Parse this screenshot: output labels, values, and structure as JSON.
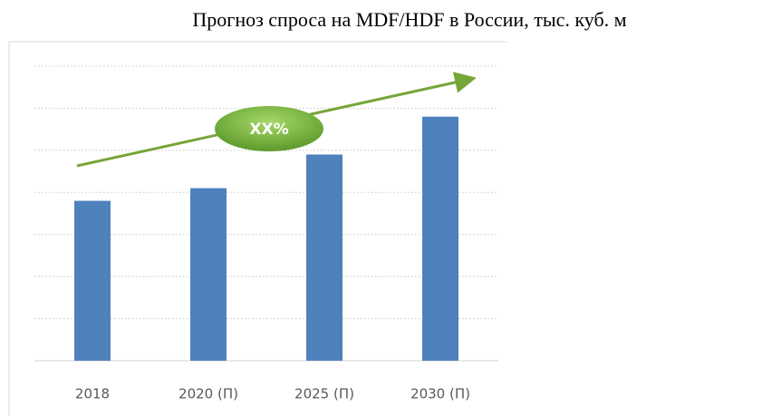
{
  "chart_data": {
    "type": "bar",
    "title": "Прогноз спроса на MDF/HDF в России, тыс. куб. м",
    "categories": [
      "2018",
      "2020 (П)",
      "2025 (П)",
      "2030 (П)"
    ],
    "values": [
      3.8,
      4.1,
      4.9,
      5.8
    ],
    "color": "#4f81bd",
    "ylim": [
      0,
      7
    ],
    "yticks": [
      0,
      1,
      2,
      3,
      4,
      5,
      6,
      7
    ],
    "grid": true,
    "annotation": "XX%"
  }
}
